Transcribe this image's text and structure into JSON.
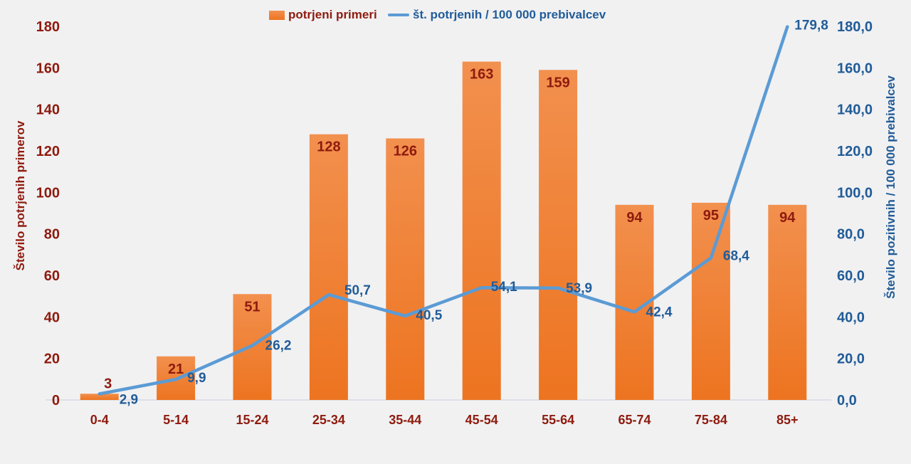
{
  "legend": {
    "bar": "potrjeni primeri",
    "line": "št. potrjenih / 100 000 prebivalcev"
  },
  "chart_data": {
    "type": "combo",
    "categories": [
      "0-4",
      "5-14",
      "15-24",
      "25-34",
      "35-44",
      "45-54",
      "55-64",
      "65-74",
      "75-84",
      "85+"
    ],
    "series": [
      {
        "name": "potrjeni primeri",
        "type": "bar",
        "axis": "left",
        "values": [
          3,
          21,
          51,
          128,
          126,
          163,
          159,
          94,
          95,
          94
        ]
      },
      {
        "name": "št. potrjenih / 100 000 prebivalcev",
        "type": "line",
        "axis": "right",
        "values": [
          2.9,
          9.9,
          26.2,
          50.7,
          40.5,
          54.1,
          53.9,
          42.4,
          68.4,
          179.8
        ]
      }
    ],
    "left_axis": {
      "title": "Število potrjenih primerov",
      "min": 0,
      "max": 180,
      "step": 20
    },
    "right_axis": {
      "title": "Število pozitivnih / 100 000 prebivalcev",
      "min": 0,
      "max": 180,
      "step": 20
    },
    "legend_position": "top",
    "gridlines": false,
    "colors": {
      "background": "#f1f1f2",
      "bar_top": "#f2904e",
      "bar_bottom": "#ed7420",
      "line": "#5b9bd5",
      "bar_label": "#8e1b0e",
      "line_label": "#215c98",
      "left_axis_text": "#8e1b0e",
      "right_axis_text": "#215c98",
      "axis_line": "#d9dae2"
    }
  }
}
